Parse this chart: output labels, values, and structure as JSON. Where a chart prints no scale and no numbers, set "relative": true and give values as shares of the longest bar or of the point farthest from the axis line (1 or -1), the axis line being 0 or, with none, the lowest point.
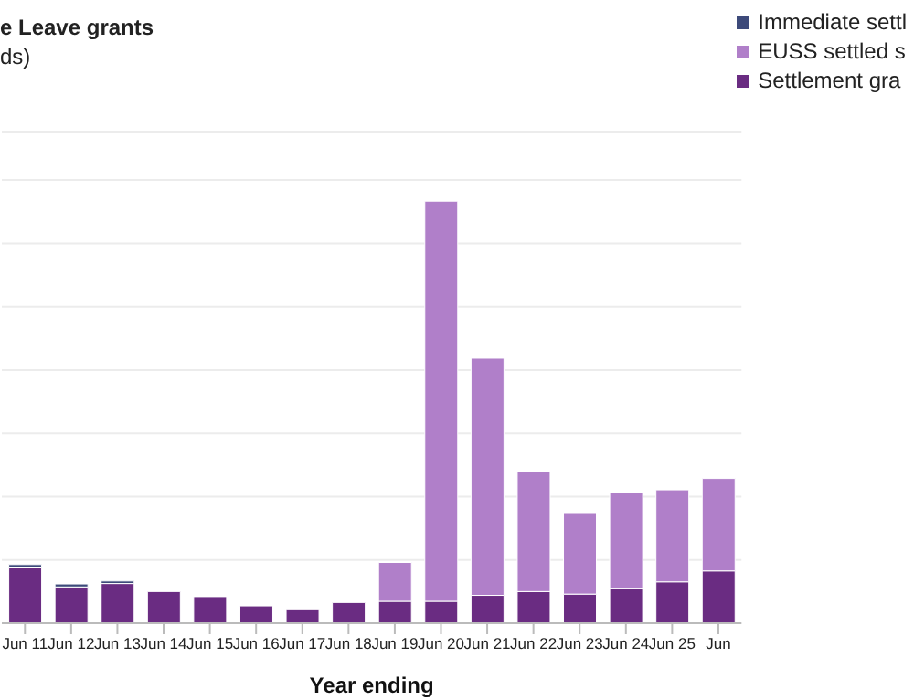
{
  "chart_data": {
    "type": "bar",
    "title": "e Leave grants",
    "subtitle": "ds)",
    "xlabel": "Year ending",
    "categories": [
      "Jun 11",
      "Jun 12",
      "Jun 13",
      "Jun 14",
      "Jun 15",
      "Jun 16",
      "Jun 17",
      "Jun 18",
      "Jun 19",
      "Jun 20",
      "Jun 21",
      "Jun 22",
      "Jun 23",
      "Jun 24",
      "Jun 25",
      "Jun"
    ],
    "relative": true,
    "stacked": true,
    "grid": "y",
    "legend": "top right",
    "series": [
      {
        "name": "Settlement gra",
        "color": "#6a2c82",
        "values": [
          0.131,
          0.086,
          0.094,
          0.075,
          0.063,
          0.041,
          0.034,
          0.049,
          0.052,
          0.052,
          0.066,
          0.075,
          0.069,
          0.083,
          0.098,
          0.124
        ]
      },
      {
        "name": "EUSS settled s",
        "color": "#b07fc9",
        "values": [
          0,
          0,
          0,
          0,
          0,
          0,
          0,
          0,
          0.092,
          0.948,
          0.562,
          0.284,
          0.193,
          0.226,
          0.218,
          0.219
        ]
      },
      {
        "name": "Immediate settl",
        "color": "#3d4a7a",
        "values": [
          0.008,
          0.007,
          0.006,
          0,
          0,
          0,
          0,
          0,
          0,
          0,
          0,
          0,
          0,
          0,
          0,
          0
        ]
      }
    ]
  }
}
